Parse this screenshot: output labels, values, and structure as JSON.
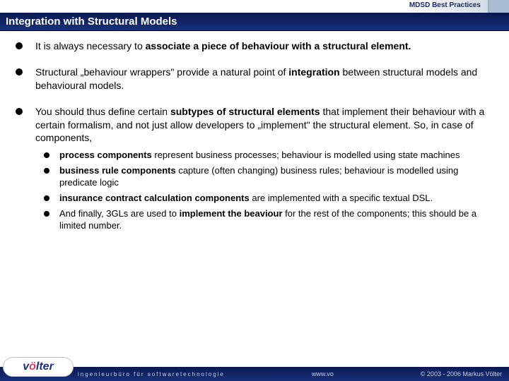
{
  "header": {
    "label": "MDSD Best Practices"
  },
  "title": "Integration with Structural Models",
  "bullets": [
    {
      "html": "It is always necessary to <b>associate a piece of behaviour with a structural element.</b>"
    },
    {
      "html": "Structural „behaviour wrappers\" provide a natural point of <b>integration</b> between structural models and behavioural models."
    },
    {
      "html": "You should thus define certain <b>subtypes of structural elements</b> that implement their behaviour with a certain formalism, and not just allow developers to „implement\" the structural element. So, in case of components,",
      "subs": [
        {
          "html": "<b>process components</b> represent business processes; behaviour is modelled using state machines"
        },
        {
          "html": "<b>business rule components</b> capture (often changing) business rules; behaviour is modelled using predicate logic"
        },
        {
          "html": "<b>insurance contract calculation components</b> are implemented with a specific textual DSL."
        },
        {
          "html": "And finally, 3GLs are used to <b>implement the beaviour</b> for the rest of the components; this should be a limited number."
        }
      ]
    }
  ],
  "footer": {
    "left": "ingenieurbüro für softwaretechnologie",
    "mid": "www.vo",
    "right": "© 2003 - 2006 Markus Völter"
  },
  "logo": {
    "text": "völter",
    "accent_letter": "ö"
  }
}
